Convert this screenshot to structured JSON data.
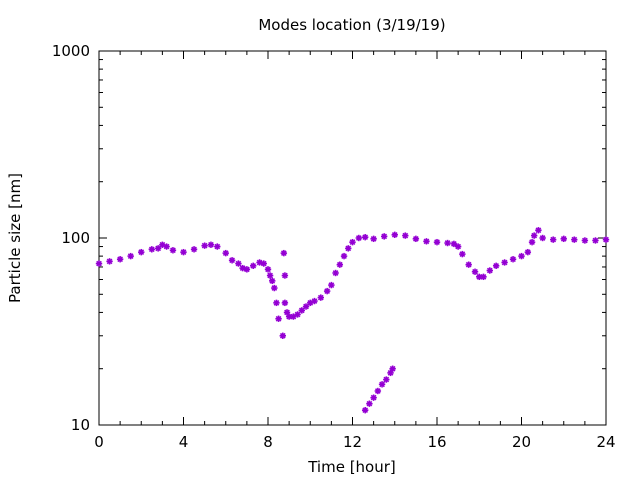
{
  "chart_data": {
    "type": "scatter",
    "title": "Modes location (3/19/19)",
    "xlabel": "Time [hour]",
    "ylabel": "Particle size [nm]",
    "xlim": [
      0,
      24
    ],
    "ylim": [
      10,
      1000
    ],
    "yscale": "log",
    "grid": false,
    "legend": "none",
    "marker_color": "#9400d3",
    "x_ticks": [
      {
        "value": 0,
        "label": "0"
      },
      {
        "value": 4,
        "label": "4"
      },
      {
        "value": 8,
        "label": "8"
      },
      {
        "value": 12,
        "label": "12"
      },
      {
        "value": 16,
        "label": "16"
      },
      {
        "value": 20,
        "label": "20"
      },
      {
        "value": 24,
        "label": "24"
      }
    ],
    "y_ticks": [
      {
        "value": 10,
        "label": "10"
      },
      {
        "value": 100,
        "label": "100"
      },
      {
        "value": 1000,
        "label": "1000"
      }
    ],
    "series": [
      {
        "x": [
          0,
          0.5,
          1,
          1.5,
          2,
          2.5,
          2.8,
          3,
          3.2,
          3.5,
          4,
          4.5,
          5,
          5.3,
          5.6,
          6,
          6.3,
          6.6,
          6.8,
          7,
          7.3,
          7.6,
          7.8,
          8,
          8.1,
          8.2,
          8.3,
          8.4,
          8.5,
          8.7,
          8.8,
          8.9,
          9.0,
          9.2,
          9.4,
          9.6,
          9.8,
          10,
          10.2,
          10.5,
          10.8,
          11,
          11.2,
          11.4,
          11.6,
          11.8,
          12,
          12.3,
          12.6,
          13,
          13.5,
          14,
          14.5,
          15,
          15.5,
          16,
          16.5,
          16.8,
          17,
          17.2,
          17.5,
          17.8,
          18,
          18.2,
          18.5,
          18.8,
          19.2,
          19.6,
          20,
          20.3,
          20.5,
          20.6,
          20.8,
          21,
          21.5,
          22,
          22.5,
          23,
          23.5,
          24
        ],
        "y": [
          73,
          75,
          77,
          80,
          84,
          87,
          88,
          92,
          90,
          86,
          84,
          87,
          91,
          92,
          90,
          83,
          76,
          73,
          69,
          68,
          71,
          74,
          73,
          68,
          63,
          59,
          54,
          45,
          37,
          30,
          45,
          40,
          38,
          38,
          39,
          41,
          43,
          45,
          46,
          48,
          52,
          56,
          65,
          72,
          80,
          88,
          95,
          100,
          101,
          99,
          102,
          104,
          103,
          99,
          96,
          95,
          94,
          93,
          90,
          82,
          72,
          66,
          62,
          62,
          67,
          71,
          74,
          77,
          80,
          84,
          95,
          103,
          110,
          100,
          98,
          99,
          98,
          97,
          97,
          98
        ]
      },
      {
        "x": [
          12.6,
          12.8,
          13.0,
          13.2,
          13.4,
          13.6,
          13.8,
          13.9
        ],
        "y": [
          12,
          13,
          14,
          15.2,
          16.5,
          17.5,
          19,
          20
        ]
      },
      {
        "x": [
          8.75,
          8.8
        ],
        "y": [
          83,
          63
        ]
      }
    ]
  }
}
